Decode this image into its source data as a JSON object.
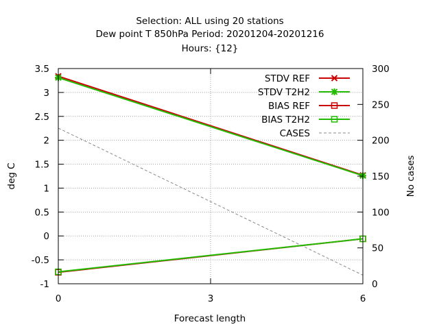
{
  "chart_data": {
    "type": "line",
    "title_lines": [
      "Selection: ALL using    20 stations",
      "Dew point T 850hPa   Period: 20201204-20201216",
      "Hours: {12}"
    ],
    "xlabel": "Forecast length",
    "ylabel": "deg C",
    "y2label": "No cases",
    "x": [
      0,
      3,
      6
    ],
    "x_ticks": [
      "0",
      "3",
      "6"
    ],
    "xlim": [
      0,
      6
    ],
    "ylim": [
      -1,
      3.5
    ],
    "y_ticks": [
      "-1",
      "-0.5",
      "0",
      "0.5",
      "1",
      "1.5",
      "2",
      "2.5",
      "3",
      "3.5"
    ],
    "y2lim": [
      0,
      300
    ],
    "y2_ticks": [
      "0",
      "50",
      "100",
      "150",
      "200",
      "250",
      "300"
    ],
    "grid": true,
    "legend_position": "top-right",
    "series": [
      {
        "name": "STDV REF",
        "x": [
          0,
          6
        ],
        "values": [
          3.34,
          1.27
        ],
        "color": "#cc0000",
        "marker": "x-cross",
        "axis": "left"
      },
      {
        "name": "STDV T2H2",
        "x": [
          0,
          6
        ],
        "values": [
          3.31,
          1.26
        ],
        "color": "#22bb00",
        "marker": "star",
        "axis": "left"
      },
      {
        "name": "BIAS REF",
        "x": [
          0,
          6
        ],
        "values": [
          -0.76,
          -0.06
        ],
        "color": "#cc0000",
        "marker": "square",
        "axis": "left"
      },
      {
        "name": "BIAS T2H2",
        "x": [
          0,
          6
        ],
        "values": [
          -0.75,
          -0.06
        ],
        "color": "#22bb00",
        "marker": "square",
        "axis": "left"
      },
      {
        "name": "CASES",
        "x": [
          0,
          6
        ],
        "values": [
          217,
          12
        ],
        "color": "#888888",
        "marker": "none",
        "dashed": true,
        "axis": "right"
      }
    ]
  }
}
